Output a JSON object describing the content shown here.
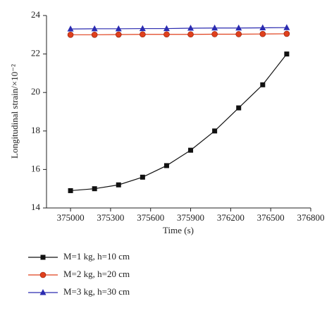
{
  "chart_data": {
    "type": "line",
    "xlabel": "Time (s)",
    "ylabel": "Longitudinal strain/×10⁻²",
    "x": [
      375000,
      375180,
      375360,
      375540,
      375720,
      375900,
      376080,
      376260,
      376440,
      376620
    ],
    "series": [
      {
        "name": "M=1 kg, h=10 cm",
        "color": "#111111",
        "marker": "square",
        "values": [
          14.9,
          15.0,
          15.2,
          15.6,
          16.2,
          17.0,
          18.0,
          19.2,
          20.4,
          22.0
        ]
      },
      {
        "name": "M=2 kg, h=20 cm",
        "color": "#e0401c",
        "marker": "circle",
        "values": [
          23.0,
          23.0,
          23.01,
          23.02,
          23.02,
          23.02,
          23.03,
          23.03,
          23.04,
          23.05
        ]
      },
      {
        "name": "M=3 kg, h=30 cm",
        "color": "#2b2bb0",
        "marker": "triangle",
        "values": [
          23.3,
          23.31,
          23.31,
          23.32,
          23.32,
          23.34,
          23.35,
          23.35,
          23.36,
          23.37
        ]
      }
    ],
    "xlim": [
      374820,
      376800
    ],
    "xticks": [
      375000,
      375300,
      375600,
      375900,
      376200,
      376500,
      376800
    ],
    "ylim": [
      14,
      24
    ],
    "yticks": [
      14,
      16,
      18,
      20,
      22,
      24
    ],
    "grid": false
  }
}
